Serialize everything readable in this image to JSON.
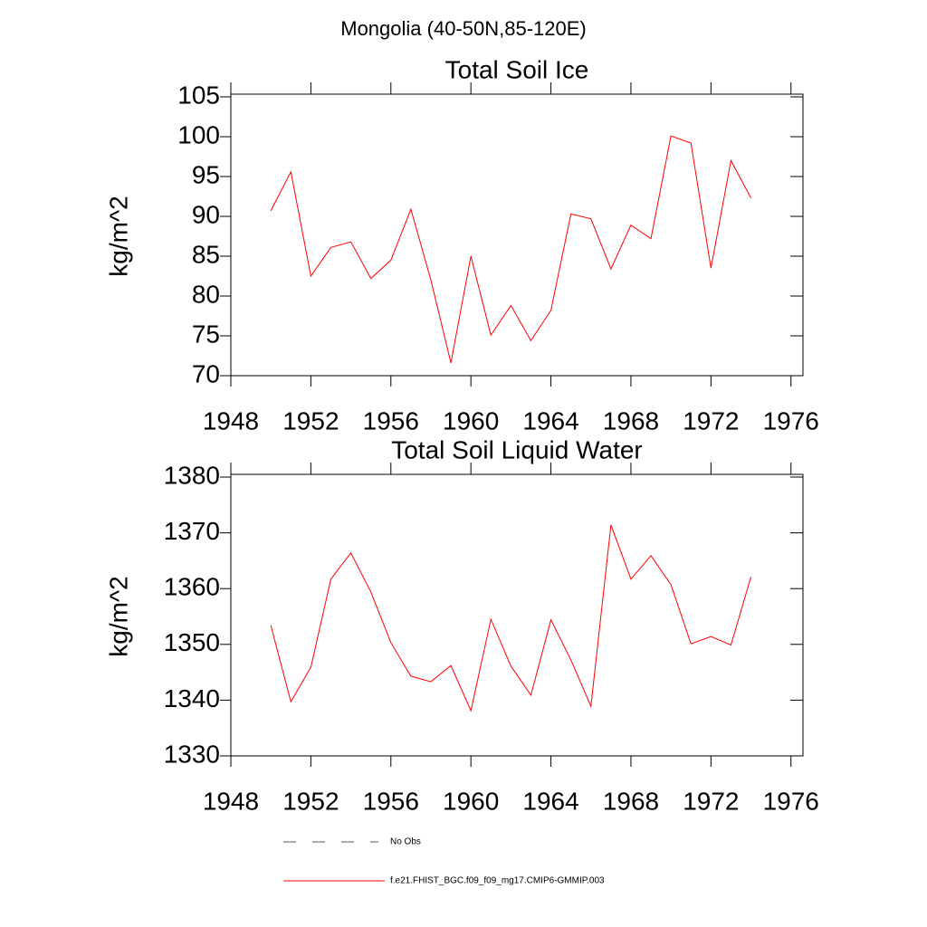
{
  "title": "Mongolia (40-50N,85-120E)",
  "legend": [
    {
      "name": "No Obs",
      "color": "#000000",
      "dash": true
    },
    {
      "name": "f.e21.FHIST_BGC.f09_f09_mg17.CMIP6-GMMIP.003",
      "color": "#ff0000",
      "dash": false
    }
  ],
  "chart_data": [
    {
      "type": "line",
      "title": "Total Soil Ice",
      "y_label": "kg/m^2",
      "x": [
        1950,
        1951,
        1952,
        1953,
        1954,
        1955,
        1956,
        1957,
        1958,
        1959,
        1960,
        1961,
        1962,
        1963,
        1964,
        1965,
        1966,
        1967,
        1968,
        1969,
        1970,
        1971,
        1972,
        1973,
        1974
      ],
      "series": [
        {
          "color": "#ff0000",
          "values": [
            90.7,
            95.6,
            82.5,
            86.1,
            86.8,
            82.2,
            84.5,
            90.9,
            82,
            71.6,
            85.0,
            75.1,
            78.8,
            74.4,
            78.2,
            90.3,
            89.7,
            83.4,
            88.9,
            87.2,
            100.1,
            99.2,
            83.5,
            97.0,
            92.3
          ]
        }
      ],
      "xlim": [
        1948,
        1976.6
      ],
      "xticks": [
        1948,
        1952,
        1956,
        1960,
        1964,
        1968,
        1972,
        1976
      ],
      "ylim": [
        70,
        105
      ],
      "yticks": [
        70,
        75,
        80,
        85,
        90,
        95,
        100,
        105
      ]
    },
    {
      "type": "line",
      "title": "Total Soil Liquid Water",
      "y_label": "kg/m^2",
      "x": [
        1950,
        1951,
        1952,
        1953,
        1954,
        1955,
        1956,
        1957,
        1958,
        1959,
        1960,
        1961,
        1962,
        1963,
        1964,
        1965,
        1966,
        1967,
        1968,
        1969,
        1970,
        1971,
        1972,
        1973,
        1974
      ],
      "series": [
        {
          "color": "#ff0000",
          "values": [
            1353.4,
            1339.7,
            1345.9,
            1361.7,
            1366.4,
            1359.4,
            1350.3,
            1344.3,
            1343.3,
            1346.2,
            1338.1,
            1354.5,
            1346.1,
            1340.9,
            1354.4,
            1347.2,
            1338.9,
            1371.4,
            1361.7,
            1365.9,
            1360.7,
            1350.1,
            1351.4,
            1349.9,
            1362.1
          ]
        }
      ],
      "xlim": [
        1948,
        1976.6
      ],
      "xticks": [
        1948,
        1952,
        1956,
        1960,
        1964,
        1968,
        1972,
        1976
      ],
      "ylim": [
        1330,
        1380
      ],
      "yticks": [
        1330,
        1340,
        1350,
        1360,
        1370,
        1380
      ]
    }
  ]
}
